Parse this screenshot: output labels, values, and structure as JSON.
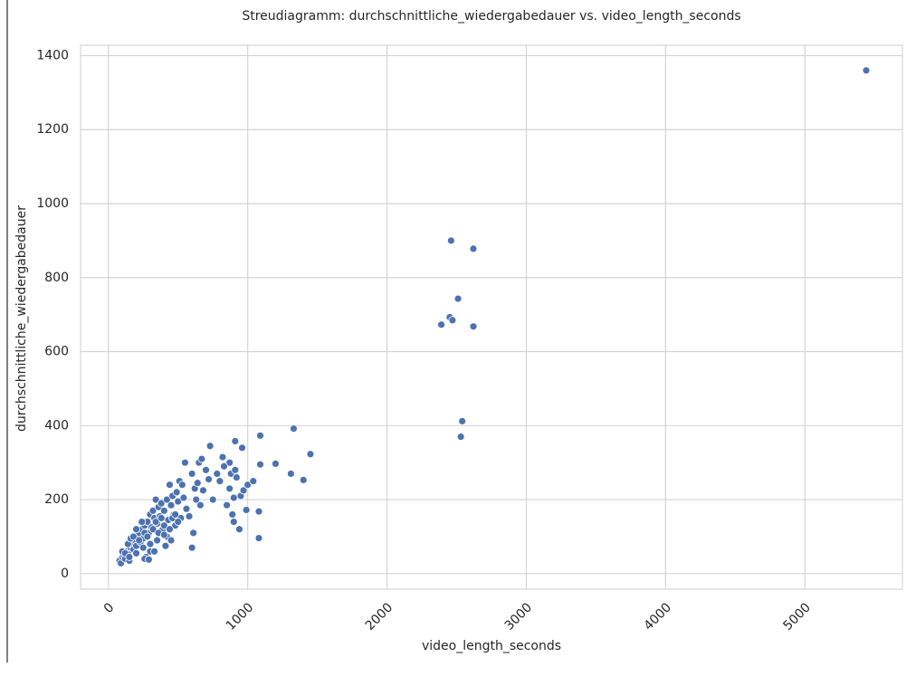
{
  "chart_data": {
    "type": "scatter",
    "title": "Streudiagramm: durchschnittliche_wiedergabedauer vs. video_length_seconds",
    "x_label": "video_length_seconds",
    "y_label": "durchschnittliche_wiedergabedauer",
    "color": "#4c72b0",
    "grid": true,
    "xlim": [
      -200,
      5700
    ],
    "xticks": [
      0,
      1000,
      2000,
      3000,
      4000,
      5000
    ],
    "ylim": [
      -42,
      1428
    ],
    "yticks": [
      0,
      200,
      400,
      600,
      800,
      1000,
      1200,
      1400
    ],
    "x": [
      5440,
      2460,
      2620,
      2510,
      2450,
      2470,
      2390,
      2620,
      2540,
      2530,
      1330,
      1450,
      1090,
      910,
      730,
      1090,
      1200,
      1310,
      1400,
      1080,
      1080,
      600,
      940,
      990,
      870,
      820,
      960,
      80,
      90,
      100,
      110,
      120,
      130,
      140,
      150,
      160,
      170,
      180,
      190,
      200,
      210,
      220,
      230,
      240,
      250,
      260,
      270,
      280,
      290,
      300,
      310,
      320,
      330,
      340,
      350,
      360,
      370,
      380,
      390,
      400,
      410,
      420,
      430,
      440,
      450,
      460,
      470,
      480,
      490,
      500,
      510,
      520,
      530,
      540,
      550,
      560,
      580,
      600,
      610,
      620,
      630,
      640,
      650,
      660,
      670,
      680,
      700,
      720,
      750,
      780,
      800,
      830,
      850,
      870,
      880,
      890,
      900,
      900,
      910,
      920,
      950,
      970,
      1000,
      1040,
      100,
      120,
      140,
      160,
      180,
      200,
      220,
      240,
      260,
      280,
      300,
      320,
      340,
      360,
      380,
      400,
      420,
      440,
      460,
      480,
      500,
      260,
      300,
      350,
      400,
      450,
      200,
      150,
      250,
      330,
      290
    ],
    "values": [
      1360,
      900,
      878,
      743,
      693,
      685,
      673,
      668,
      412,
      370,
      392,
      323,
      373,
      358,
      345,
      295,
      297,
      270,
      253,
      168,
      96,
      70,
      120,
      172,
      300,
      315,
      340,
      35,
      28,
      45,
      50,
      40,
      60,
      55,
      35,
      70,
      80,
      65,
      90,
      75,
      100,
      110,
      85,
      120,
      95,
      130,
      45,
      140,
      110,
      160,
      125,
      170,
      150,
      200,
      135,
      180,
      155,
      190,
      120,
      170,
      75,
      200,
      145,
      240,
      185,
      210,
      160,
      130,
      220,
      195,
      250,
      150,
      240,
      205,
      300,
      175,
      155,
      270,
      110,
      230,
      200,
      245,
      300,
      185,
      310,
      225,
      280,
      255,
      200,
      270,
      250,
      290,
      185,
      230,
      270,
      160,
      205,
      140,
      280,
      260,
      210,
      225,
      240,
      250,
      60,
      55,
      80,
      95,
      100,
      120,
      90,
      140,
      110,
      100,
      80,
      120,
      140,
      110,
      150,
      130,
      100,
      120,
      150,
      160,
      140,
      40,
      60,
      90,
      105,
      90,
      55,
      45,
      70,
      60,
      38
    ]
  }
}
